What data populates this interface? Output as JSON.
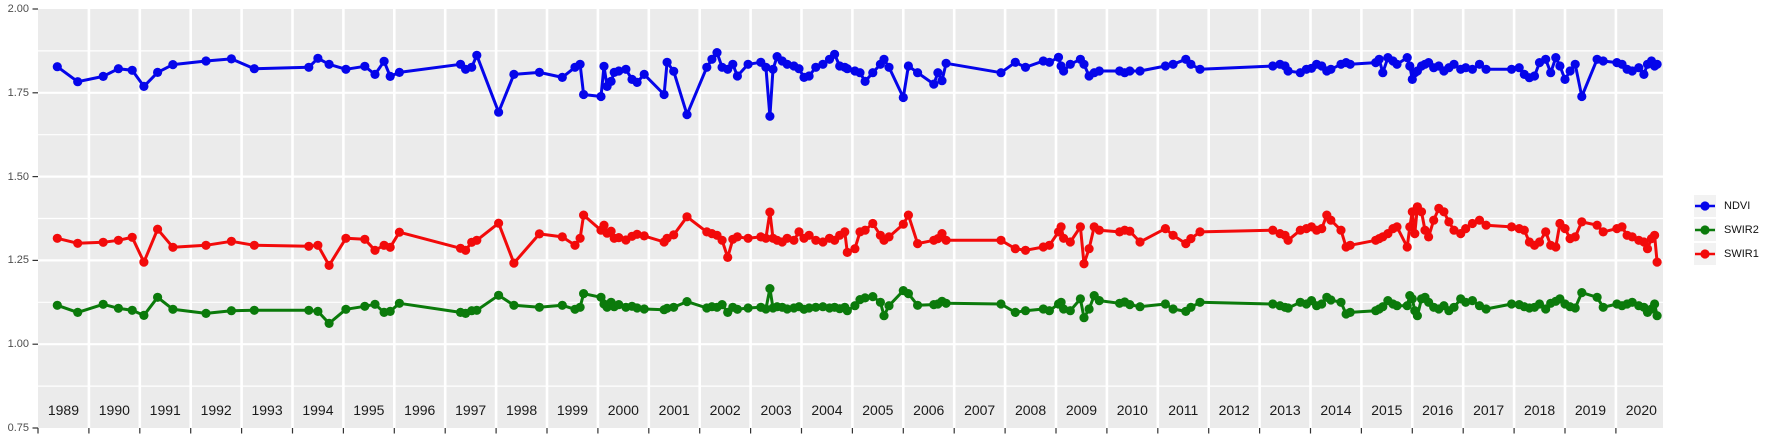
{
  "style": {
    "panel_bg": "#EBEBEB",
    "grid_color": "#FFFFFF",
    "axis_text_color": "#4D4D4D",
    "year_text_color": "#1A1A1A",
    "tick_color": "#333333",
    "legend_key_bg": "#F2F2F2"
  },
  "y_axis": {
    "tick_labels": [
      "2.00",
      "1.75",
      "1.50",
      "1.25",
      "1.00",
      "0.75"
    ],
    "tick_values": [
      2.0,
      1.75,
      1.5,
      1.25,
      1.0,
      0.75
    ],
    "minor_grid_values": [
      1.875,
      1.625,
      1.375,
      1.125,
      0.875
    ]
  },
  "x_axis": {
    "year_labels": [
      "1989",
      "1990",
      "1991",
      "1992",
      "1993",
      "1994",
      "1995",
      "1996",
      "1997",
      "1998",
      "1999",
      "2000",
      "2001",
      "2002",
      "2003",
      "2004",
      "2005",
      "2006",
      "2007",
      "2008",
      "2009",
      "2010",
      "2011",
      "2012",
      "2013",
      "2014",
      "2015",
      "2016",
      "2017",
      "2018",
      "2019",
      "2020"
    ]
  },
  "legend": {
    "items": [
      {
        "label": "NDVI",
        "color": "#0505EA"
      },
      {
        "label": "SWIR2",
        "color": "#0B7A0B"
      },
      {
        "label": "SWIR1",
        "color": "#F20A0A"
      }
    ]
  },
  "chart_data": {
    "type": "line",
    "title": "",
    "xlabel": "",
    "ylabel": "",
    "xlim": [
      1989.0,
      2020.93
    ],
    "ylim": [
      0.75,
      2.0
    ],
    "grid": true,
    "legend_position": "right",
    "x_unit": "decimal year",
    "series": [
      {
        "name": "NDVI",
        "color": "#0505EA",
        "column": 1
      },
      {
        "name": "SWIR2",
        "color": "#0B7A0B",
        "column": 2
      },
      {
        "name": "SWIR1",
        "color": "#F20A0A",
        "column": 3
      }
    ],
    "columns": [
      "year",
      "NDVI",
      "SWIR2",
      "SWIR1"
    ],
    "points": [
      [
        1989.38,
        1.828,
        1.116,
        1.316
      ],
      [
        1989.78,
        1.783,
        1.095,
        1.301
      ],
      [
        1990.28,
        1.799,
        1.119,
        1.304
      ],
      [
        1990.58,
        1.822,
        1.107,
        1.31
      ],
      [
        1990.85,
        1.817,
        1.101,
        1.319
      ],
      [
        1991.08,
        1.769,
        1.086,
        1.245
      ],
      [
        1991.35,
        1.811,
        1.14,
        1.343
      ],
      [
        1991.65,
        1.834,
        1.104,
        1.289
      ],
      [
        1992.3,
        1.845,
        1.092,
        1.295
      ],
      [
        1992.8,
        1.851,
        1.1,
        1.307
      ],
      [
        1993.25,
        1.822,
        1.101,
        1.295
      ],
      [
        1994.32,
        1.826,
        1.101,
        1.292
      ],
      [
        1994.5,
        1.853,
        1.098,
        1.295
      ],
      [
        1994.72,
        1.835,
        1.062,
        1.235
      ],
      [
        1995.05,
        1.82,
        1.104,
        1.316
      ],
      [
        1995.42,
        1.829,
        1.113,
        1.313
      ],
      [
        1995.62,
        1.805,
        1.119,
        1.28
      ],
      [
        1995.8,
        1.844,
        1.095,
        1.295
      ],
      [
        1995.92,
        1.799,
        1.098,
        1.289
      ],
      [
        1996.1,
        1.811,
        1.122,
        1.334
      ],
      [
        1997.3,
        1.835,
        1.095,
        1.286
      ],
      [
        1997.4,
        1.82,
        1.092,
        1.28
      ],
      [
        1997.52,
        1.826,
        1.1,
        1.304
      ],
      [
        1997.62,
        1.862,
        1.101,
        1.31
      ],
      [
        1998.05,
        1.692,
        1.146,
        1.361
      ],
      [
        1998.35,
        1.805,
        1.116,
        1.242
      ],
      [
        1998.85,
        1.811,
        1.11,
        1.329
      ],
      [
        1999.3,
        1.796,
        1.116,
        1.32
      ],
      [
        1999.55,
        1.826,
        1.104,
        1.295
      ],
      [
        1999.65,
        1.835,
        1.11,
        1.316
      ],
      [
        1999.72,
        1.745,
        1.151,
        1.385
      ],
      [
        2000.06,
        1.739,
        1.14,
        1.34
      ],
      [
        2000.12,
        1.829,
        1.12,
        1.355
      ],
      [
        2000.18,
        1.769,
        1.11,
        1.331
      ],
      [
        2000.26,
        1.784,
        1.125,
        1.337
      ],
      [
        2000.32,
        1.811,
        1.112,
        1.316
      ],
      [
        2000.41,
        1.815,
        1.118,
        1.318
      ],
      [
        2000.55,
        1.82,
        1.11,
        1.311
      ],
      [
        2000.67,
        1.79,
        1.113,
        1.322
      ],
      [
        2000.77,
        1.781,
        1.108,
        1.328
      ],
      [
        2000.91,
        1.805,
        1.105,
        1.323
      ],
      [
        2001.3,
        1.745,
        1.103,
        1.305
      ],
      [
        2001.36,
        1.841,
        1.107,
        1.316
      ],
      [
        2001.49,
        1.814,
        1.11,
        1.326
      ],
      [
        2001.75,
        1.685,
        1.127,
        1.38
      ],
      [
        2002.14,
        1.826,
        1.108,
        1.335
      ],
      [
        2002.24,
        1.85,
        1.112,
        1.33
      ],
      [
        2002.34,
        1.87,
        1.11,
        1.325
      ],
      [
        2002.44,
        1.826,
        1.118,
        1.31
      ],
      [
        2002.55,
        1.82,
        1.095,
        1.259
      ],
      [
        2002.65,
        1.835,
        1.11,
        1.313
      ],
      [
        2002.74,
        1.8,
        1.104,
        1.32
      ],
      [
        2002.95,
        1.835,
        1.108,
        1.316
      ],
      [
        2003.2,
        1.841,
        1.11,
        1.32
      ],
      [
        2003.3,
        1.826,
        1.105,
        1.316
      ],
      [
        2003.38,
        1.68,
        1.166,
        1.394
      ],
      [
        2003.44,
        1.82,
        1.108,
        1.316
      ],
      [
        2003.52,
        1.858,
        1.112,
        1.31
      ],
      [
        2003.62,
        1.845,
        1.11,
        1.305
      ],
      [
        2003.72,
        1.835,
        1.105,
        1.316
      ],
      [
        2003.85,
        1.83,
        1.108,
        1.31
      ],
      [
        2003.95,
        1.822,
        1.112,
        1.335
      ],
      [
        2004.05,
        1.796,
        1.104,
        1.316
      ],
      [
        2004.15,
        1.8,
        1.108,
        1.325
      ],
      [
        2004.28,
        1.826,
        1.11,
        1.31
      ],
      [
        2004.42,
        1.835,
        1.112,
        1.305
      ],
      [
        2004.55,
        1.85,
        1.108,
        1.316
      ],
      [
        2004.65,
        1.865,
        1.11,
        1.31
      ],
      [
        2004.75,
        1.83,
        1.106,
        1.325
      ],
      [
        2004.85,
        1.826,
        1.11,
        1.335
      ],
      [
        2004.9,
        1.822,
        1.1,
        1.274
      ],
      [
        2005.05,
        1.815,
        1.115,
        1.285
      ],
      [
        2005.15,
        1.81,
        1.133,
        1.335
      ],
      [
        2005.25,
        1.784,
        1.138,
        1.34
      ],
      [
        2005.4,
        1.81,
        1.142,
        1.36
      ],
      [
        2005.55,
        1.835,
        1.125,
        1.325
      ],
      [
        2005.62,
        1.85,
        1.085,
        1.31
      ],
      [
        2005.72,
        1.826,
        1.115,
        1.32
      ],
      [
        2006.0,
        1.736,
        1.16,
        1.358
      ],
      [
        2006.1,
        1.83,
        1.151,
        1.385
      ],
      [
        2006.28,
        1.81,
        1.116,
        1.3
      ],
      [
        2006.6,
        1.776,
        1.118,
        1.31
      ],
      [
        2006.68,
        1.81,
        1.12,
        1.315
      ],
      [
        2006.76,
        1.786,
        1.128,
        1.33
      ],
      [
        2006.84,
        1.838,
        1.122,
        1.31
      ],
      [
        2007.92,
        1.81,
        1.12,
        1.31
      ],
      [
        2008.2,
        1.841,
        1.095,
        1.285
      ],
      [
        2008.4,
        1.826,
        1.1,
        1.28
      ],
      [
        2008.75,
        1.845,
        1.105,
        1.29
      ],
      [
        2008.87,
        1.841,
        1.1,
        1.295
      ],
      [
        2009.05,
        1.856,
        1.12,
        1.335
      ],
      [
        2009.1,
        1.83,
        1.125,
        1.35
      ],
      [
        2009.15,
        1.815,
        1.105,
        1.316
      ],
      [
        2009.28,
        1.835,
        1.1,
        1.305
      ],
      [
        2009.48,
        1.85,
        1.135,
        1.35
      ],
      [
        2009.55,
        1.835,
        1.079,
        1.24
      ],
      [
        2009.65,
        1.8,
        1.105,
        1.285
      ],
      [
        2009.75,
        1.81,
        1.145,
        1.35
      ],
      [
        2009.85,
        1.815,
        1.13,
        1.34
      ],
      [
        2010.25,
        1.815,
        1.122,
        1.335
      ],
      [
        2010.35,
        1.81,
        1.126,
        1.34
      ],
      [
        2010.45,
        1.815,
        1.118,
        1.337
      ],
      [
        2010.65,
        1.815,
        1.112,
        1.305
      ],
      [
        2011.15,
        1.83,
        1.12,
        1.345
      ],
      [
        2011.3,
        1.835,
        1.105,
        1.325
      ],
      [
        2011.55,
        1.85,
        1.098,
        1.3
      ],
      [
        2011.65,
        1.835,
        1.11,
        1.315
      ],
      [
        2011.83,
        1.82,
        1.125,
        1.335
      ],
      [
        2013.26,
        1.83,
        1.12,
        1.34
      ],
      [
        2013.4,
        1.835,
        1.115,
        1.33
      ],
      [
        2013.5,
        1.83,
        1.11,
        1.325
      ],
      [
        2013.56,
        1.815,
        1.108,
        1.31
      ],
      [
        2013.8,
        1.81,
        1.125,
        1.34
      ],
      [
        2013.92,
        1.82,
        1.12,
        1.345
      ],
      [
        2014.02,
        1.823,
        1.13,
        1.35
      ],
      [
        2014.12,
        1.835,
        1.115,
        1.34
      ],
      [
        2014.22,
        1.83,
        1.12,
        1.345
      ],
      [
        2014.32,
        1.815,
        1.14,
        1.385
      ],
      [
        2014.4,
        1.82,
        1.132,
        1.37
      ],
      [
        2014.6,
        1.835,
        1.125,
        1.34
      ],
      [
        2014.7,
        1.84,
        1.09,
        1.29
      ],
      [
        2014.78,
        1.835,
        1.095,
        1.295
      ],
      [
        2015.28,
        1.84,
        1.1,
        1.31
      ],
      [
        2015.35,
        1.85,
        1.105,
        1.315
      ],
      [
        2015.42,
        1.81,
        1.112,
        1.32
      ],
      [
        2015.52,
        1.855,
        1.13,
        1.33
      ],
      [
        2015.62,
        1.845,
        1.12,
        1.345
      ],
      [
        2015.7,
        1.835,
        1.115,
        1.35
      ],
      [
        2015.9,
        1.855,
        1.115,
        1.29
      ],
      [
        2015.95,
        1.83,
        1.145,
        1.35
      ],
      [
        2016.0,
        1.79,
        1.135,
        1.395
      ],
      [
        2016.05,
        1.81,
        1.1,
        1.33
      ],
      [
        2016.1,
        1.815,
        1.085,
        1.41
      ],
      [
        2016.18,
        1.83,
        1.135,
        1.395
      ],
      [
        2016.25,
        1.835,
        1.14,
        1.34
      ],
      [
        2016.32,
        1.84,
        1.125,
        1.32
      ],
      [
        2016.42,
        1.825,
        1.11,
        1.37
      ],
      [
        2016.52,
        1.83,
        1.105,
        1.405
      ],
      [
        2016.62,
        1.815,
        1.115,
        1.395
      ],
      [
        2016.72,
        1.825,
        1.1,
        1.365
      ],
      [
        2016.82,
        1.835,
        1.11,
        1.34
      ],
      [
        2016.95,
        1.82,
        1.135,
        1.33
      ],
      [
        2017.05,
        1.825,
        1.125,
        1.345
      ],
      [
        2017.18,
        1.82,
        1.13,
        1.36
      ],
      [
        2017.32,
        1.835,
        1.115,
        1.37
      ],
      [
        2017.45,
        1.82,
        1.105,
        1.355
      ],
      [
        2017.95,
        1.82,
        1.12,
        1.35
      ],
      [
        2018.1,
        1.825,
        1.118,
        1.345
      ],
      [
        2018.2,
        1.805,
        1.112,
        1.34
      ],
      [
        2018.3,
        1.795,
        1.108,
        1.305
      ],
      [
        2018.4,
        1.8,
        1.11,
        1.295
      ],
      [
        2018.5,
        1.84,
        1.12,
        1.305
      ],
      [
        2018.62,
        1.85,
        1.105,
        1.335
      ],
      [
        2018.72,
        1.81,
        1.122,
        1.295
      ],
      [
        2018.82,
        1.855,
        1.128,
        1.29
      ],
      [
        2018.9,
        1.83,
        1.135,
        1.36
      ],
      [
        2019.0,
        1.79,
        1.12,
        1.345
      ],
      [
        2019.1,
        1.815,
        1.112,
        1.315
      ],
      [
        2019.2,
        1.835,
        1.108,
        1.32
      ],
      [
        2019.33,
        1.739,
        1.154,
        1.365
      ],
      [
        2019.63,
        1.85,
        1.14,
        1.355
      ],
      [
        2019.75,
        1.845,
        1.11,
        1.335
      ],
      [
        2020.02,
        1.84,
        1.12,
        1.345
      ],
      [
        2020.12,
        1.835,
        1.115,
        1.35
      ],
      [
        2020.22,
        1.82,
        1.12,
        1.325
      ],
      [
        2020.32,
        1.815,
        1.125,
        1.32
      ],
      [
        2020.45,
        1.825,
        1.115,
        1.31
      ],
      [
        2020.55,
        1.805,
        1.11,
        1.305
      ],
      [
        2020.62,
        1.835,
        1.095,
        1.285
      ],
      [
        2020.7,
        1.845,
        1.105,
        1.315
      ],
      [
        2020.76,
        1.83,
        1.12,
        1.325
      ],
      [
        2020.81,
        1.835,
        1.085,
        1.245
      ]
    ]
  }
}
